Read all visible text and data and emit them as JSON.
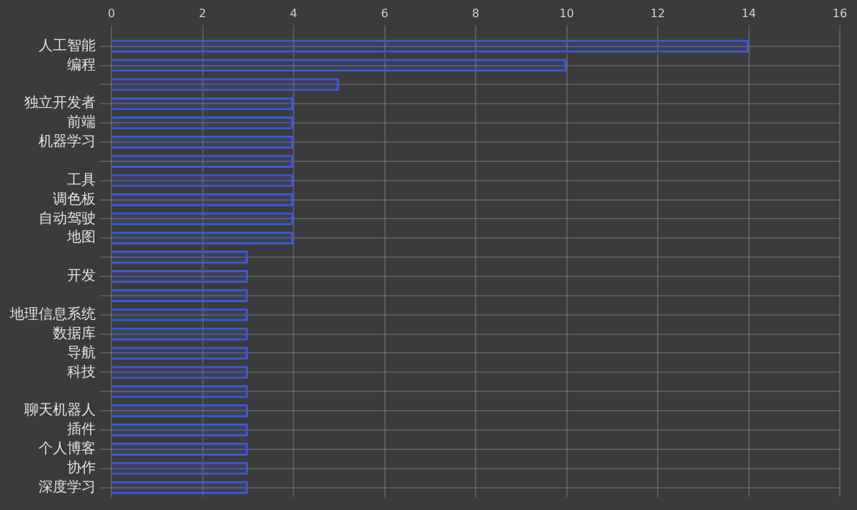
{
  "chart_data": {
    "type": "bar",
    "orientation": "horizontal",
    "categories": [
      "人工智能",
      "编程",
      null,
      "独立开发者",
      "前端",
      "机器学习",
      null,
      "工具",
      "调色板",
      "自动驾驶",
      "地图",
      null,
      "开发",
      null,
      "地理信息系统",
      "数据库",
      "导航",
      "科技",
      null,
      "聊天机器人",
      "插件",
      "个人博客",
      "协作",
      "深度学习"
    ],
    "values": [
      14,
      10,
      5,
      4,
      4,
      4,
      4,
      4,
      4,
      4,
      4,
      3,
      3,
      3,
      3,
      3,
      3,
      3,
      3,
      3,
      3,
      3,
      3,
      3
    ],
    "color": "#3a5ad6",
    "xlim": [
      0,
      16
    ],
    "xticks": [
      0,
      2,
      4,
      6,
      8,
      10,
      12,
      14,
      16
    ],
    "grid": true
  }
}
